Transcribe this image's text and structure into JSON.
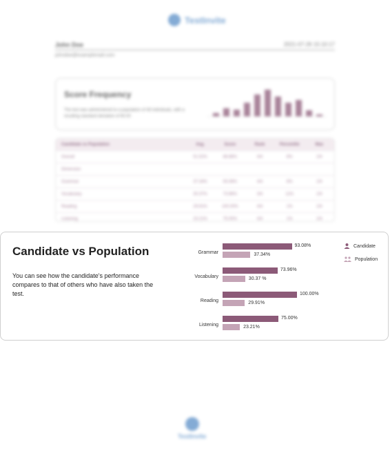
{
  "background_page": {
    "brand": "TestInvite",
    "candidate_name": "John Doe",
    "date": "2021-07-26 15:10:17",
    "email": "johndoe@examplemail.com",
    "score_frequency": {
      "title": "Score Frequency",
      "description": "The test was administered to a population of 48 individuals, with a resulting standard deviation of 60.00"
    },
    "table": {
      "headers": [
        "Candidate vs Population",
        "Avg.",
        "Score",
        "Rank",
        "Percentile",
        "Max"
      ],
      "rows": [
        [
          "Overall",
          "51.52%",
          "88.88%",
          "4/4",
          "8%",
          "2/4"
        ],
        [
          "Dimension",
          "",
          "",
          "",
          "",
          ""
        ],
        [
          "Grammar",
          "37.34%",
          "93.08%",
          "4/4",
          "8%",
          "2/4"
        ],
        [
          "Vocabulary",
          "30.37%",
          "73.96%",
          "3/4",
          "11%",
          "2/4"
        ],
        [
          "Reading",
          "29.91%",
          "100.00%",
          "4/4",
          "1%",
          "2/4"
        ],
        [
          "Listening",
          "23.21%",
          "75.00%",
          "4/4",
          "1%",
          "2/4"
        ]
      ]
    }
  },
  "card": {
    "title": "Candidate vs Population",
    "description": "You can see how the candidate's performance compares to that of others who have also taken the test."
  },
  "legend": {
    "candidate": "Candidate",
    "population": "Population"
  },
  "colors": {
    "candidate": "#8c5a78",
    "population": "#c4a4b6"
  },
  "chart_data": {
    "type": "bar",
    "orientation": "horizontal",
    "categories": [
      "Grammar",
      "Vocabulary",
      "Reading",
      "Listening"
    ],
    "xlim": [
      0,
      100
    ],
    "series": [
      {
        "name": "Candidate",
        "values": [
          93.08,
          73.96,
          100.0,
          75.0
        ],
        "labels": [
          "93.08%",
          "73.96%",
          "100.00%",
          "75.00%"
        ]
      },
      {
        "name": "Population",
        "values": [
          37.34,
          30.37,
          29.91,
          23.21
        ],
        "labels": [
          "37.34%",
          "30.37 %",
          "29.91%",
          "23.21%"
        ]
      }
    ],
    "legend": "right"
  }
}
